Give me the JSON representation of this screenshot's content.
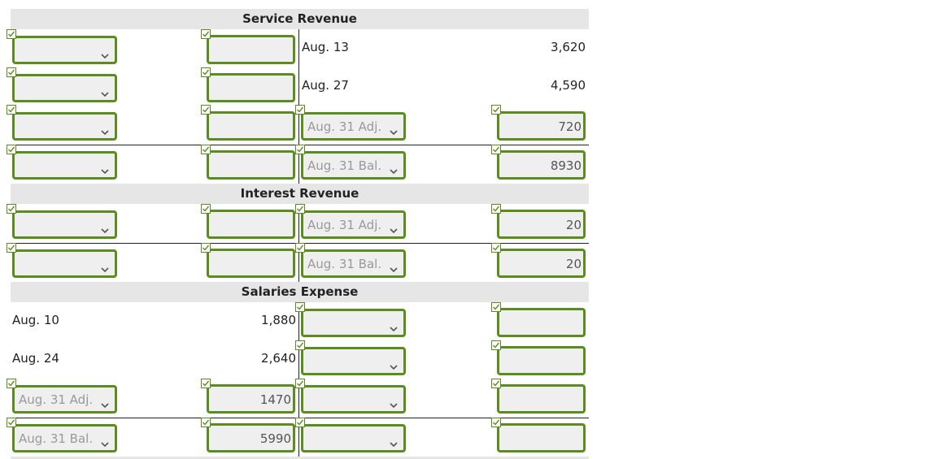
{
  "colors": {
    "accent": "#5b8c1e",
    "header_bg": "#e6e6e6",
    "field_bg": "#efefef"
  },
  "accounts": [
    {
      "title": "Service Revenue",
      "rows": [
        {
          "debit_date": "",
          "debit_amount": "",
          "credit_date": "Aug. 13",
          "credit_amount": "3,620"
        },
        {
          "debit_date": "",
          "debit_amount": "",
          "credit_date": "Aug. 27",
          "credit_amount": "4,590"
        },
        {
          "debit_date": "",
          "debit_amount": "",
          "credit_date": "Aug. 31 Adj.",
          "credit_amount": "720"
        },
        {
          "debit_date": "",
          "debit_amount": "",
          "credit_date": "Aug. 31 Bal.",
          "credit_amount": "8930"
        }
      ]
    },
    {
      "title": "Interest Revenue",
      "rows": [
        {
          "debit_date": "",
          "debit_amount": "",
          "credit_date": "Aug. 31 Adj.",
          "credit_amount": "20"
        },
        {
          "debit_date": "",
          "debit_amount": "",
          "credit_date": "Aug. 31 Bal.",
          "credit_amount": "20"
        }
      ]
    },
    {
      "title": "Salaries Expense",
      "rows": [
        {
          "debit_date": "Aug. 10",
          "debit_amount": "1,880",
          "credit_date": "",
          "credit_amount": ""
        },
        {
          "debit_date": "Aug. 24",
          "debit_amount": "2,640",
          "credit_date": "",
          "credit_amount": ""
        },
        {
          "debit_date": "Aug. 31 Adj.",
          "debit_amount": "1470",
          "credit_date": "",
          "credit_amount": ""
        },
        {
          "debit_date": "Aug. 31 Bal.",
          "debit_amount": "5990",
          "credit_date": "",
          "credit_amount": ""
        }
      ]
    }
  ]
}
